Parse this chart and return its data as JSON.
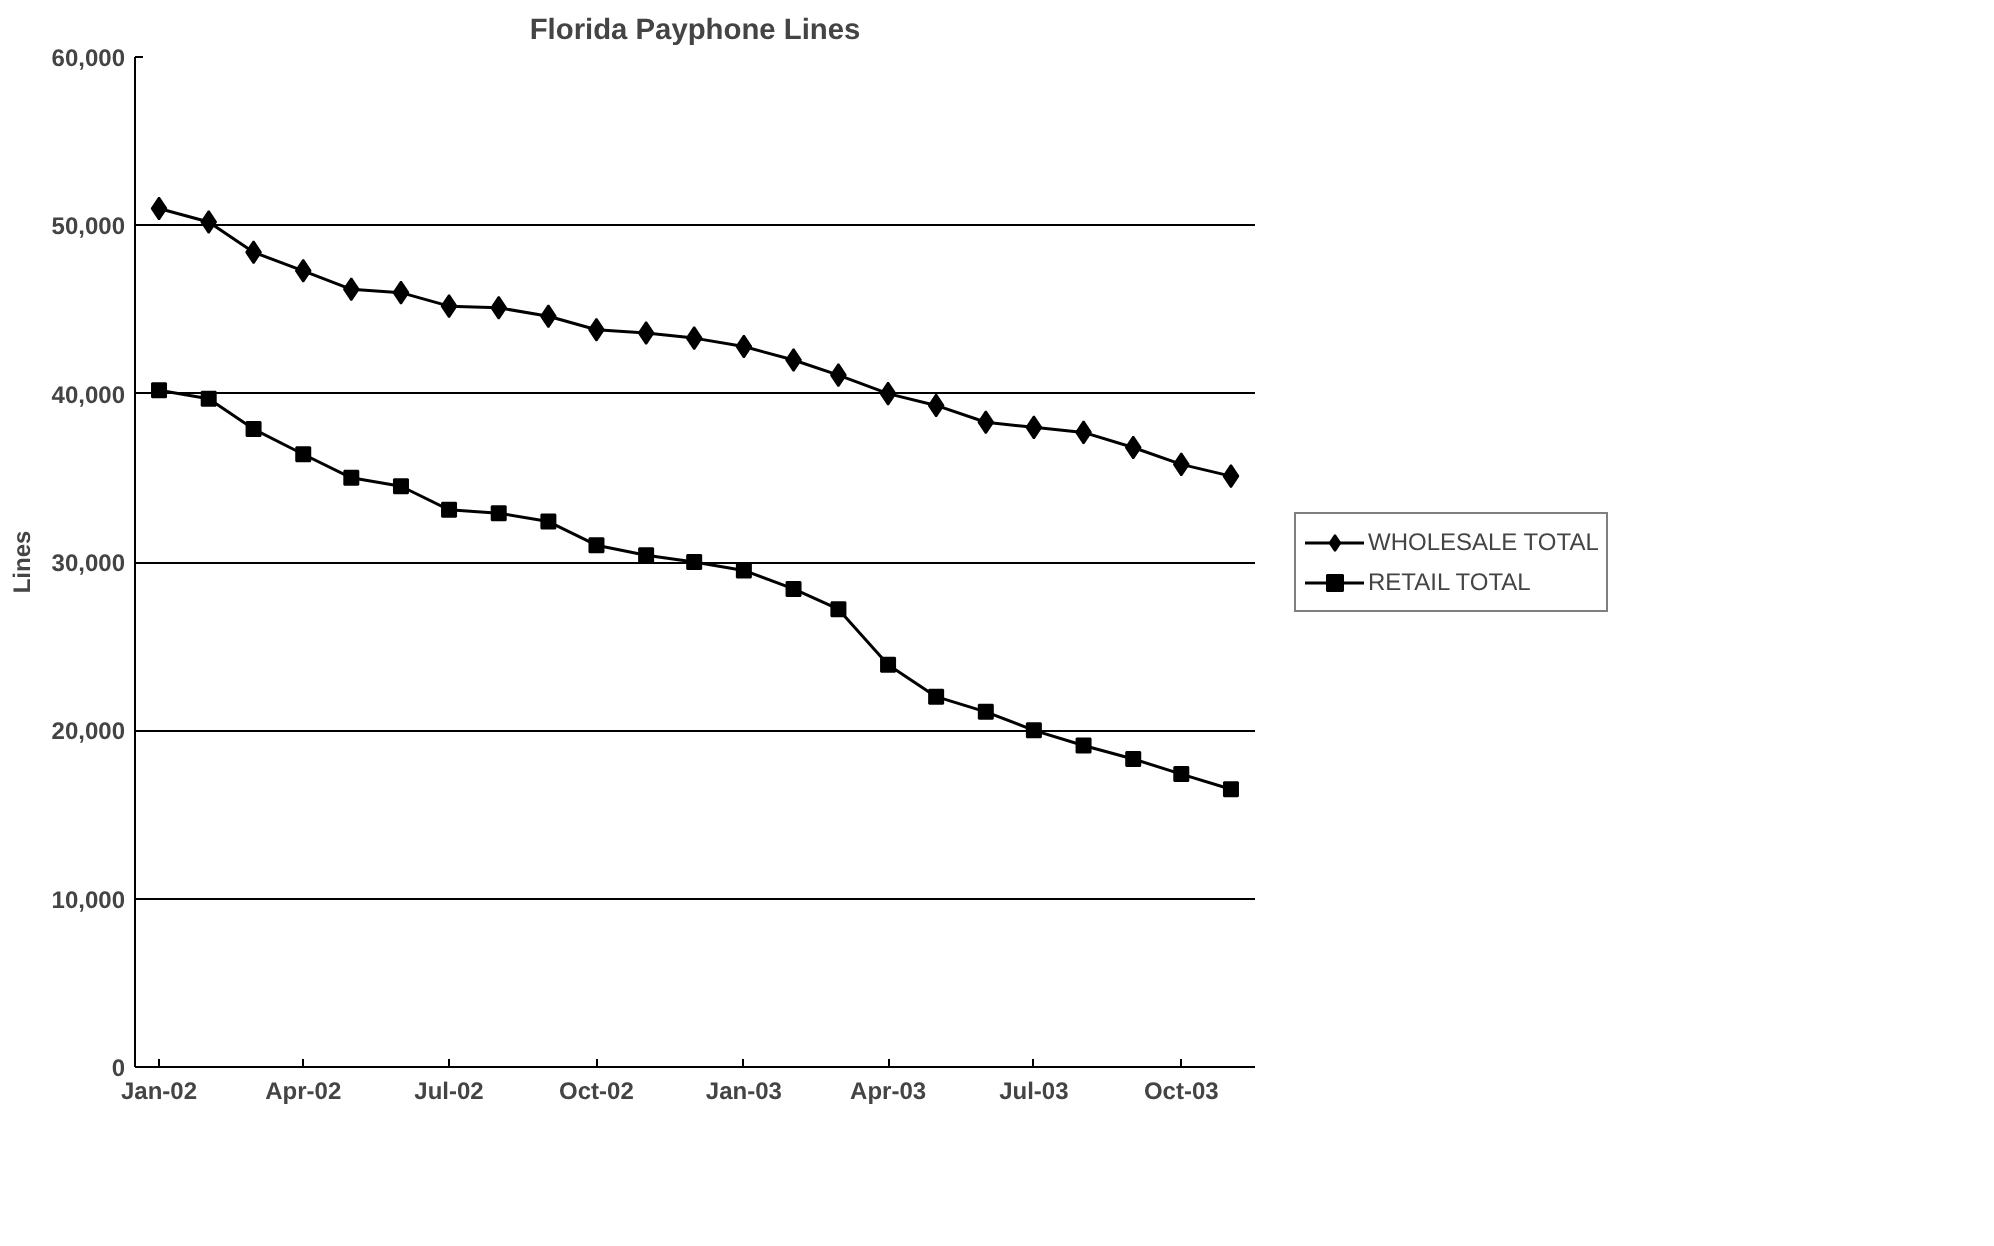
{
  "chart_data": {
    "type": "line",
    "title": "Florida Payphone Lines",
    "ylabel": "Lines",
    "x": [
      "2002-01",
      "2002-02",
      "2002-03",
      "2002-04",
      "2002-05",
      "2002-06",
      "2002-07",
      "2002-08",
      "2002-09",
      "2002-10",
      "2002-11",
      "2002-12",
      "2003-01",
      "2003-02",
      "2003-03",
      "2003-04",
      "2003-05",
      "2003-06",
      "2003-07",
      "2003-08",
      "2003-09",
      "2003-10",
      "2003-11"
    ],
    "series": [
      {
        "name": "WHOLESALE TOTAL",
        "color": "#000000",
        "marker": "diamond",
        "values": [
          51000,
          50200,
          48400,
          47300,
          46200,
          46000,
          45200,
          45100,
          44600,
          43800,
          43600,
          43300,
          42800,
          42000,
          41100,
          40000,
          39300,
          38300,
          38000,
          37700,
          36800,
          35800,
          35100
        ]
      },
      {
        "name": "RETAIL TOTAL",
        "color": "#000000",
        "marker": "square",
        "values": [
          40200,
          39700,
          37900,
          36400,
          35000,
          34500,
          33100,
          32900,
          32400,
          31000,
          30400,
          30000,
          29500,
          28400,
          27200,
          23900,
          22000,
          21100,
          20000,
          19100,
          18300,
          17400,
          16500
        ]
      }
    ],
    "xlim": [
      "2001-12-17",
      "2003-11-16"
    ],
    "xticks": [
      {
        "value": "2002-01",
        "label": "Jan-02"
      },
      {
        "value": "2002-04",
        "label": "Apr-02"
      },
      {
        "value": "2002-07",
        "label": "Jul-02"
      },
      {
        "value": "2002-10",
        "label": "Oct-02"
      },
      {
        "value": "2003-01",
        "label": "Jan-03"
      },
      {
        "value": "2003-04",
        "label": "Apr-03"
      },
      {
        "value": "2003-07",
        "label": "Jul-03"
      },
      {
        "value": "2003-10",
        "label": "Oct-03"
      }
    ],
    "ylim": [
      0,
      60000
    ],
    "yticks": [
      {
        "value": 0,
        "label": "0"
      },
      {
        "value": 10000,
        "label": "10,000"
      },
      {
        "value": 20000,
        "label": "20,000"
      },
      {
        "value": 30000,
        "label": "30,000"
      },
      {
        "value": 40000,
        "label": "40,000"
      },
      {
        "value": 50000,
        "label": "50,000"
      },
      {
        "value": 60000,
        "label": "60,000"
      }
    ],
    "grid": "y",
    "legend": "right",
    "line_style": "solid"
  }
}
